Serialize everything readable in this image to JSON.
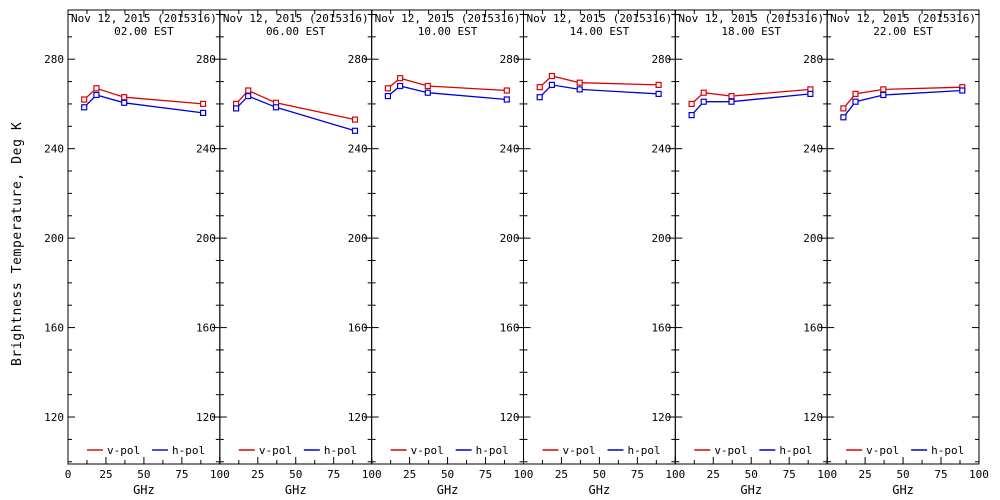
{
  "chart_data": {
    "type": "line",
    "title": "",
    "ylabel": "Brightness Temperature, Deg K",
    "xlabel": "GHz",
    "x": [
      10.7,
      18.7,
      37,
      89
    ],
    "xlim": [
      0,
      100
    ],
    "ylim": [
      99,
      302
    ],
    "xticks": [
      0,
      25,
      50,
      75,
      100
    ],
    "xminor": [
      12.5,
      37.5,
      62.5,
      87.5
    ],
    "yticks": [
      120,
      160,
      200,
      240,
      280
    ],
    "yminor_step": 10,
    "grid": "off",
    "legend_position": "bottom-inside-each-panel",
    "series_meta": [
      {
        "name": "v-pol",
        "key": "v_pol",
        "color": "#dd0000"
      },
      {
        "name": "h-pol",
        "key": "h_pol",
        "color": "#0000dd"
      }
    ],
    "panels": [
      {
        "title_line1": "Nov 12, 2015 (2015316)",
        "title_line2": "02.00 EST",
        "v_pol": [
          262.0,
          267.0,
          263.0,
          260.0
        ],
        "h_pol": [
          258.5,
          264.0,
          260.5,
          256.0
        ]
      },
      {
        "title_line1": "Nov 12, 2015 (2015316)",
        "title_line2": "06.00 EST",
        "v_pol": [
          260.0,
          266.0,
          260.5,
          253.0
        ],
        "h_pol": [
          258.0,
          263.5,
          258.5,
          248.0
        ]
      },
      {
        "title_line1": "Nov 12, 2015 (2015316)",
        "title_line2": "10.00 EST",
        "v_pol": [
          267.0,
          271.5,
          268.0,
          266.0
        ],
        "h_pol": [
          263.5,
          268.0,
          265.0,
          262.0
        ]
      },
      {
        "title_line1": "Nov 12, 2015 (2015316)",
        "title_line2": "14.00 EST",
        "v_pol": [
          267.5,
          272.5,
          269.5,
          268.5
        ],
        "h_pol": [
          263.0,
          268.5,
          266.5,
          264.5
        ]
      },
      {
        "title_line1": "Nov 12, 2015 (2015316)",
        "title_line2": "18.00 EST",
        "v_pol": [
          260.0,
          265.0,
          263.5,
          266.5
        ],
        "h_pol": [
          255.0,
          261.0,
          261.0,
          264.5
        ]
      },
      {
        "title_line1": "Nov 12, 2015 (2015316)",
        "title_line2": "22.00 EST",
        "v_pol": [
          258.0,
          264.5,
          266.5,
          267.5
        ],
        "h_pol": [
          254.0,
          261.0,
          264.0,
          266.0
        ]
      }
    ]
  },
  "colors": {
    "foreground": "#000000",
    "background": "#ffffff",
    "v_pol": "#dd0000",
    "h_pol": "#0000dd"
  }
}
